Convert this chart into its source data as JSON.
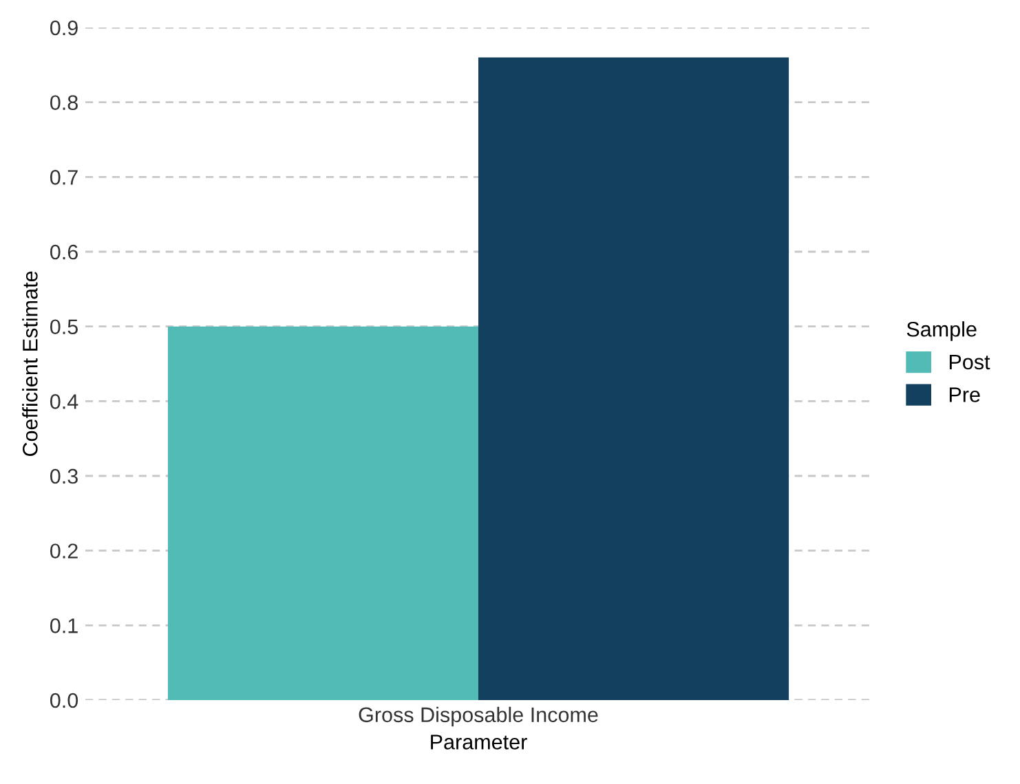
{
  "chart_data": {
    "type": "bar",
    "xlabel": "Parameter",
    "ylabel": "Coefficient Estimate",
    "legend_title": "Sample",
    "categories": [
      "Gross Disposable Income"
    ],
    "series": [
      {
        "name": "Post",
        "color": "#52bbb5",
        "values": [
          0.5
        ]
      },
      {
        "name": "Pre",
        "color": "#12405e",
        "values": [
          0.86
        ]
      }
    ],
    "ylim": [
      0,
      0.9
    ],
    "yticks": [
      {
        "value": 0,
        "label": "0.0"
      },
      0.1,
      0.2,
      0.3,
      0.4,
      0.5,
      0.6,
      0.7,
      0.8,
      0.9
    ],
    "grid": "y",
    "legend": "right"
  }
}
